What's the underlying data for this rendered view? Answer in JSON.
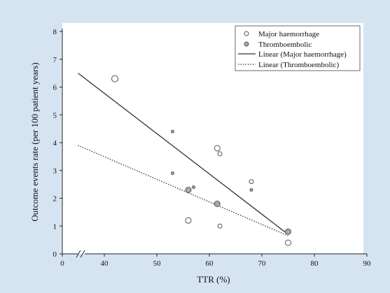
{
  "chart_data": {
    "type": "scatter",
    "xlabel": "TTR (%)",
    "ylabel": "Outcome events rate (per 100 patient years)",
    "xlim": [
      0,
      90
    ],
    "ylim": [
      0,
      8
    ],
    "xticks": [
      0,
      40,
      50,
      60,
      70,
      80,
      90
    ],
    "yticks": [
      0,
      1,
      2,
      3,
      4,
      5,
      6,
      7,
      8
    ],
    "axis_break": "x between 0 and 35",
    "grid": false,
    "legend_position": "top-right",
    "background_color": "#d6e4f2",
    "plot_background_color": "#ffffff",
    "series": [
      {
        "name": "Major haemorrhage",
        "kind": "points",
        "marker": "open-circle",
        "color": "#ffffff",
        "points": [
          {
            "x": 42,
            "y": 6.3,
            "size": "large"
          },
          {
            "x": 61.5,
            "y": 3.8,
            "size": "medium"
          },
          {
            "x": 62,
            "y": 3.6,
            "size": "small"
          },
          {
            "x": 68,
            "y": 2.6,
            "size": "small"
          },
          {
            "x": 56,
            "y": 1.2,
            "size": "medium"
          },
          {
            "x": 62,
            "y": 1.0,
            "size": "small"
          },
          {
            "x": 75,
            "y": 0.4,
            "size": "medium"
          }
        ]
      },
      {
        "name": "Thromboembolic",
        "kind": "points",
        "marker": "filled-circle",
        "color": "#a9a9a9",
        "points": [
          {
            "x": 53,
            "y": 4.4,
            "size": "tiny"
          },
          {
            "x": 53,
            "y": 2.9,
            "size": "tiny"
          },
          {
            "x": 57,
            "y": 2.4,
            "size": "tiny"
          },
          {
            "x": 56,
            "y": 2.3,
            "size": "medium"
          },
          {
            "x": 61.5,
            "y": 1.8,
            "size": "medium"
          },
          {
            "x": 68,
            "y": 2.3,
            "size": "tiny"
          },
          {
            "x": 75,
            "y": 0.8,
            "size": "medium"
          }
        ]
      },
      {
        "name": "Linear (Major haemorrhage)",
        "kind": "line",
        "style": "solid",
        "color": "#333333",
        "x": [
          35,
          75
        ],
        "y": [
          6.5,
          0.7
        ]
      },
      {
        "name": "Linear (Thromboembolic)",
        "kind": "line",
        "style": "dotted",
        "color": "#333333",
        "x": [
          35,
          75
        ],
        "y": [
          3.9,
          0.65
        ]
      }
    ]
  }
}
